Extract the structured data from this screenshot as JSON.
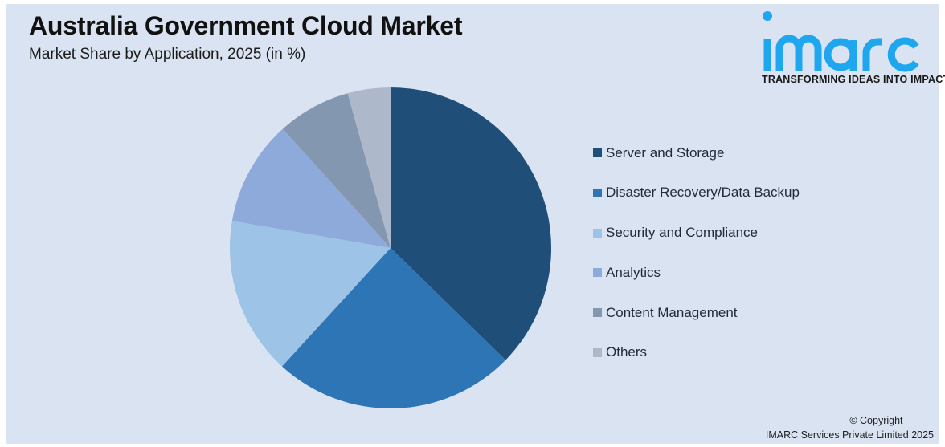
{
  "header": {
    "title": "Australia Government Cloud Market",
    "subtitle": "Market Share by Application, 2025 (in %)"
  },
  "logo": {
    "wordmark": "imarc",
    "tagline": "TRANSFORMING IDEAS INTO IMPACT",
    "color": "#1ea7ef"
  },
  "legend": {
    "items": [
      {
        "label": "Server and Storage",
        "color": "#1f4e79"
      },
      {
        "label": "Disaster Recovery/Data Backup",
        "color": "#2e75b6"
      },
      {
        "label": "Security and Compliance",
        "color": "#9dc3e6"
      },
      {
        "label": "Analytics",
        "color": "#8eaadb"
      },
      {
        "label": "Content Management",
        "color": "#8497b0"
      },
      {
        "label": "Others",
        "color": "#adb9ca"
      }
    ]
  },
  "footer": {
    "copyright_line1": "© Copyright",
    "copyright_line2": "IMARC Services Private Limited 2025"
  },
  "chart_data": {
    "type": "pie",
    "title": "Australia Government Cloud Market",
    "subtitle": "Market Share by Application, 2025 (in %)",
    "categories": [
      "Server and Storage",
      "Disaster Recovery/Data Backup",
      "Security and Compliance",
      "Analytics",
      "Content Management",
      "Others"
    ],
    "values": [
      37.3,
      24.5,
      15.9,
      10.6,
      7.4,
      4.3
    ],
    "colors": [
      "#1f4e79",
      "#2e75b6",
      "#9dc3e6",
      "#8eaadb",
      "#8497b0",
      "#adb9ca"
    ],
    "start_angle": "12 o'clock",
    "direction": "clockwise",
    "data_labels": false,
    "legend_position": "right",
    "center": [
      486,
      309
    ],
    "radius": 200
  }
}
